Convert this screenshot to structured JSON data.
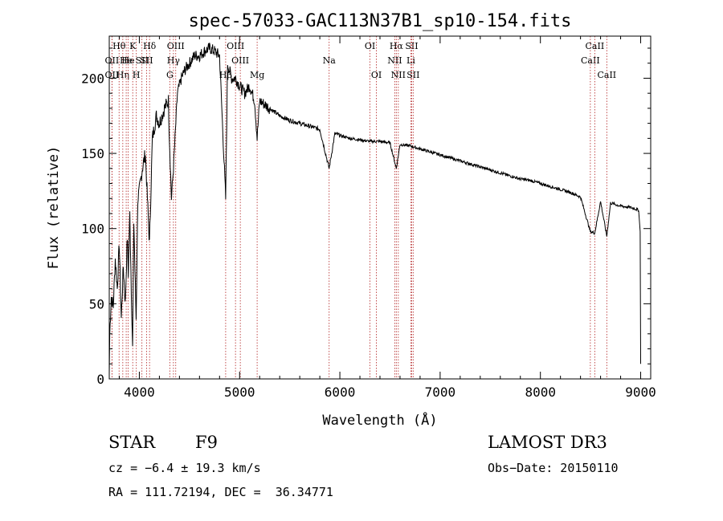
{
  "chart_data": {
    "type": "line",
    "title": "spec-57033-GAC113N37B1_sp10-154.fits",
    "xlabel": "Wavelength (Å)",
    "ylabel": "Flux (relative)",
    "xlim": [
      3700,
      9100
    ],
    "ylim": [
      0,
      228
    ],
    "xticks": [
      4000,
      5000,
      6000,
      7000,
      8000,
      9000
    ],
    "yticks": [
      0,
      50,
      100,
      150,
      200
    ],
    "series": [
      {
        "name": "spectrum",
        "x": [
          3700,
          3705,
          3720,
          3740,
          3760,
          3780,
          3800,
          3820,
          3840,
          3860,
          3880,
          3890,
          3905,
          3920,
          3933,
          3945,
          3968,
          3985,
          4000,
          4030,
          4060,
          4101,
          4130,
          4170,
          4200,
          4250,
          4290,
          4300,
          4320,
          4340,
          4380,
          4420,
          4450,
          4500,
          4550,
          4600,
          4650,
          4700,
          4750,
          4800,
          4861,
          4880,
          4920,
          4960,
          5000,
          5050,
          5100,
          5150,
          5175,
          5200,
          5300,
          5400,
          5500,
          5600,
          5700,
          5800,
          5893,
          5950,
          6000,
          6100,
          6200,
          6300,
          6400,
          6500,
          6563,
          6600,
          6700,
          6800,
          6900,
          7000,
          7100,
          7200,
          7300,
          7400,
          7500,
          7600,
          7700,
          7800,
          7900,
          8000,
          8100,
          8200,
          8300,
          8400,
          8498,
          8542,
          8600,
          8662,
          8700,
          8800,
          8900,
          8950,
          8980,
          8995,
          9000
        ],
        "y": [
          3,
          30,
          55,
          48,
          80,
          60,
          90,
          40,
          75,
          50,
          95,
          70,
          110,
          60,
          20,
          105,
          40,
          120,
          125,
          140,
          150,
          90,
          160,
          175,
          170,
          180,
          185,
          160,
          120,
          140,
          190,
          200,
          205,
          210,
          215,
          215,
          218,
          220,
          218,
          215,
          120,
          210,
          200,
          200,
          195,
          190,
          195,
          185,
          160,
          185,
          180,
          175,
          172,
          170,
          168,
          166,
          140,
          163,
          162,
          160,
          159,
          158,
          158,
          157,
          140,
          156,
          155,
          153,
          151,
          149,
          147,
          145,
          143,
          141,
          139,
          137,
          135,
          133,
          132,
          130,
          128,
          126,
          124,
          121,
          98,
          97,
          118,
          95,
          117,
          115,
          114,
          113,
          112,
          98,
          10
        ]
      }
    ],
    "lines": [
      {
        "wave": 3727,
        "label": "OII",
        "row": 2
      },
      {
        "wave": 3727,
        "label": "OII",
        "row": 3
      },
      {
        "wave": 3798,
        "label": "Hθ",
        "row": 1
      },
      {
        "wave": 3835,
        "label": "Hη",
        "row": 3
      },
      {
        "wave": 3869,
        "label": "He",
        "row": 2
      },
      {
        "wave": 3889,
        "label": "He",
        "row": 2
      },
      {
        "wave": 3934,
        "label": "K",
        "row": 1
      },
      {
        "wave": 3970,
        "label": "H",
        "row": 3
      },
      {
        "wave": 4026,
        "label": "SII",
        "row": 2
      },
      {
        "wave": 4072,
        "label": "SII",
        "row": 2
      },
      {
        "wave": 4102,
        "label": "Hδ",
        "row": 1
      },
      {
        "wave": 4304,
        "label": "G",
        "row": 3
      },
      {
        "wave": 4340,
        "label": "Hγ",
        "row": 2
      },
      {
        "wave": 4363,
        "label": "OIII",
        "row": 1
      },
      {
        "wave": 4861,
        "label": "Hβ",
        "row": 3
      },
      {
        "wave": 4959,
        "label": "OIII",
        "row": 1
      },
      {
        "wave": 5007,
        "label": "OIII",
        "row": 2
      },
      {
        "wave": 5175,
        "label": "Mg",
        "row": 3
      },
      {
        "wave": 5893,
        "label": "Na",
        "row": 2
      },
      {
        "wave": 6300,
        "label": "OI",
        "row": 1
      },
      {
        "wave": 6364,
        "label": "OI",
        "row": 3
      },
      {
        "wave": 6548,
        "label": "NII",
        "row": 2
      },
      {
        "wave": 6563,
        "label": "Hα",
        "row": 1
      },
      {
        "wave": 6583,
        "label": "NII",
        "row": 3
      },
      {
        "wave": 6708,
        "label": "Li",
        "row": 2
      },
      {
        "wave": 6716,
        "label": "SII",
        "row": 1
      },
      {
        "wave": 6731,
        "label": "SII",
        "row": 3
      },
      {
        "wave": 8498,
        "label": "CaII",
        "row": 2
      },
      {
        "wave": 8542,
        "label": "CaII",
        "row": 1
      },
      {
        "wave": 8662,
        "label": "CaII",
        "row": 3
      }
    ]
  },
  "info": {
    "class_label": "STAR",
    "subclass": "F9",
    "survey": "LAMOST DR3",
    "cz": "cz = −6.4 ± 19.3 km/s",
    "obs_date": "Obs−Date: 20150110",
    "radec": "RA = 111.72194, DEC =  36.34771"
  }
}
